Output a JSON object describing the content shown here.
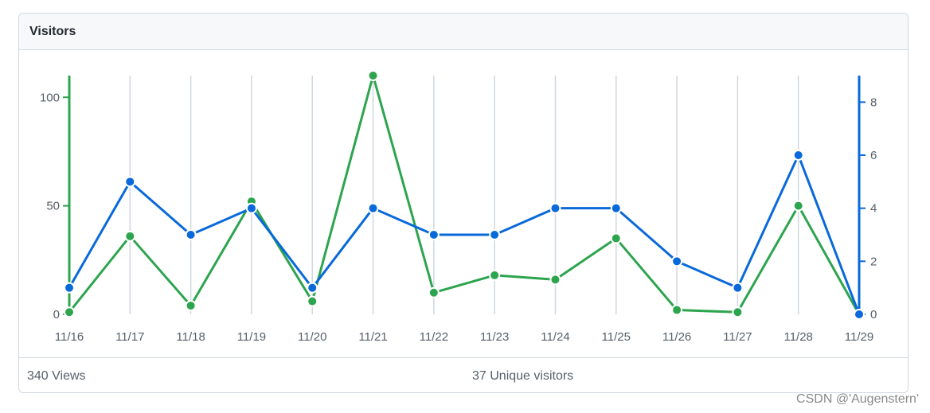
{
  "header": {
    "title": "Visitors"
  },
  "footer": {
    "views_label": "340 Views",
    "uniques_label": "37 Unique visitors"
  },
  "watermark": "CSDN @'Augenstern'",
  "colors": {
    "views": "#2da44e",
    "uniques": "#0969da",
    "grid": "#d0d7de",
    "text": "#57606a"
  },
  "chart_data": {
    "type": "line",
    "title": "",
    "xlabel": "",
    "ylabel": "",
    "categories": [
      "11/16",
      "11/17",
      "11/18",
      "11/19",
      "11/20",
      "11/21",
      "11/22",
      "11/23",
      "11/24",
      "11/25",
      "11/26",
      "11/27",
      "11/28",
      "11/29"
    ],
    "y_left": {
      "ylim": [
        0,
        110
      ],
      "ticks": [
        0,
        50,
        100
      ]
    },
    "y_right": {
      "ylim": [
        0,
        9
      ],
      "ticks": [
        0,
        2,
        4,
        6,
        8
      ]
    },
    "grid": {
      "vertical": true,
      "horizontal": false
    },
    "series": [
      {
        "axis": "left",
        "color": "#2da44e",
        "values": [
          1,
          36,
          4,
          52,
          6,
          110,
          10,
          18,
          16,
          35,
          2,
          1,
          50,
          0
        ]
      },
      {
        "axis": "right",
        "color": "#0969da",
        "values": [
          1,
          5,
          3,
          4,
          1,
          4,
          3,
          3,
          4,
          4,
          2,
          1,
          6,
          0
        ]
      }
    ]
  }
}
